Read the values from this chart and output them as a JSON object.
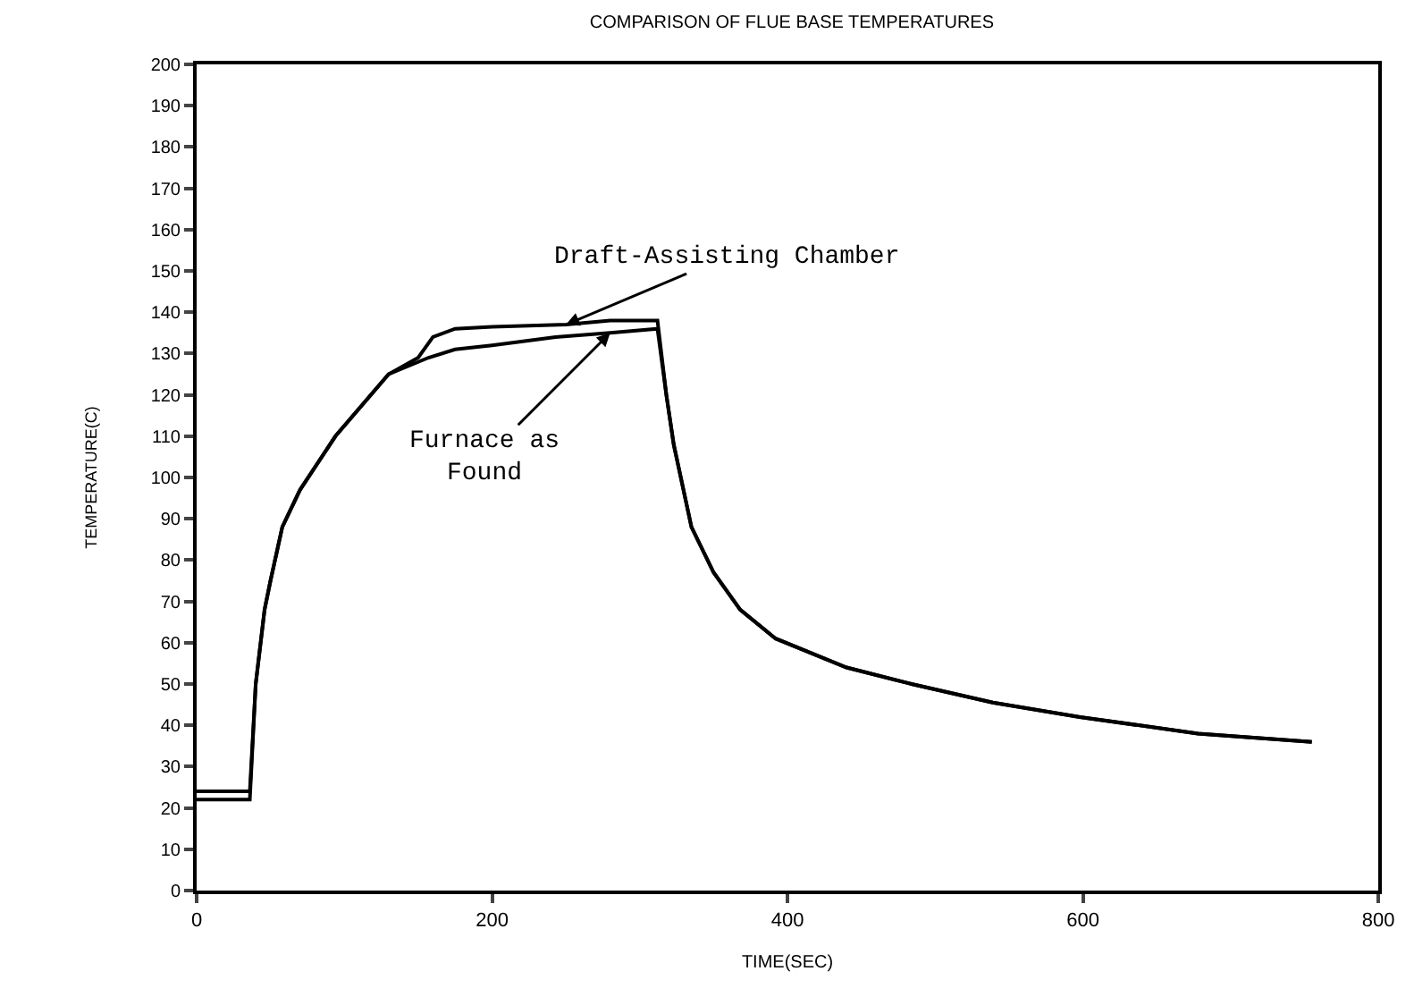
{
  "chart_data": {
    "type": "line",
    "title": "COMPARISON OF FLUE BASE TEMPERATURES",
    "xlabel": "TIME(SEC)",
    "ylabel": "TEMPERATURE(C)",
    "series": [
      {
        "name": "Draft-Assisting Chamber",
        "color": "#000000",
        "x": [
          0,
          36,
          40,
          46,
          50,
          58,
          70,
          94,
          130,
          150,
          160,
          175,
          200,
          250,
          280,
          312,
          318,
          323,
          335,
          350,
          368,
          392,
          440,
          484,
          539,
          598,
          678,
          755
        ],
        "values": [
          24,
          24,
          50,
          68,
          75,
          88,
          97,
          110,
          125,
          129,
          134,
          136,
          136.5,
          137,
          138,
          138,
          120,
          108,
          88,
          77,
          68,
          61,
          54,
          50,
          45.5,
          42,
          38,
          36
        ]
      },
      {
        "name": "Furnace as Found",
        "color": "#000000",
        "x": [
          0,
          36,
          40,
          46,
          50,
          58,
          70,
          94,
          130,
          157,
          175,
          200,
          243,
          280,
          312,
          318,
          323,
          335,
          350,
          368,
          392,
          440,
          484,
          539,
          598,
          678,
          755
        ],
        "values": [
          22,
          22,
          50,
          68,
          75,
          88,
          97,
          110,
          125,
          129,
          131,
          132,
          134,
          135,
          136,
          120,
          108,
          88,
          77,
          68,
          61,
          54,
          50,
          45.5,
          42,
          38,
          36
        ]
      }
    ],
    "xlim": [
      0,
      800
    ],
    "xticks": [
      0,
      200,
      400,
      600,
      800
    ],
    "ylim": [
      0,
      200
    ],
    "yticks": [
      0,
      10,
      20,
      30,
      40,
      50,
      60,
      70,
      80,
      90,
      100,
      110,
      120,
      130,
      140,
      150,
      160,
      170,
      180,
      190,
      200
    ],
    "grid": false,
    "legend": false,
    "marker": "none",
    "line_style": "solid"
  }
}
